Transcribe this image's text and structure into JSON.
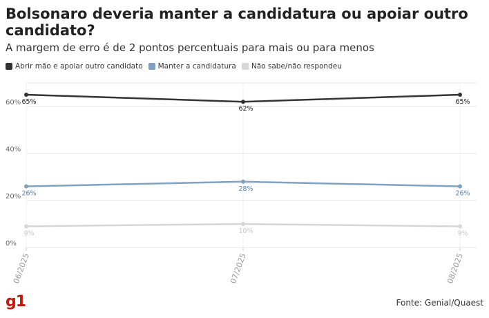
{
  "title": "Bolsonaro deveria manter a candidatura ou apoiar outro candidato?",
  "subtitle": "A margem de erro é de 2 pontos percentuais para mais ou para menos",
  "source": "Fonte: Genial/Quaest",
  "logo_text": "g1",
  "chart_data": {
    "type": "line",
    "title": "Bolsonaro deveria manter a candidatura ou apoiar outro candidato?",
    "subtitle": "A margem de erro é de 2 pontos percentuais para mais ou para menos",
    "x": [
      "06/2025",
      "07/2025",
      "08/2025"
    ],
    "ylim": [
      0,
      70
    ],
    "yticks": [
      0,
      20,
      40,
      60
    ],
    "yticklabels": [
      "0%",
      "20%",
      "40%",
      "60%"
    ],
    "grid": true,
    "legend_position": "top-left",
    "series": [
      {
        "name": "Abrir mão e apoiar outro candidato",
        "values": [
          65,
          62,
          65
        ],
        "labels": [
          "65%",
          "62%",
          "65%"
        ],
        "color": "#333333",
        "label_color": "#222222"
      },
      {
        "name": "Manter a candidatura",
        "values": [
          26,
          28,
          26
        ],
        "labels": [
          "26%",
          "28%",
          "26%"
        ],
        "color": "#7fa1c2",
        "label_color": "#5b84ad"
      },
      {
        "name": "Não sabe/não respondeu",
        "values": [
          9,
          10,
          9
        ],
        "labels": [
          "9%",
          "10%",
          "9%"
        ],
        "color": "#d6d6d6",
        "label_color": "#c8c8c8"
      }
    ]
  }
}
